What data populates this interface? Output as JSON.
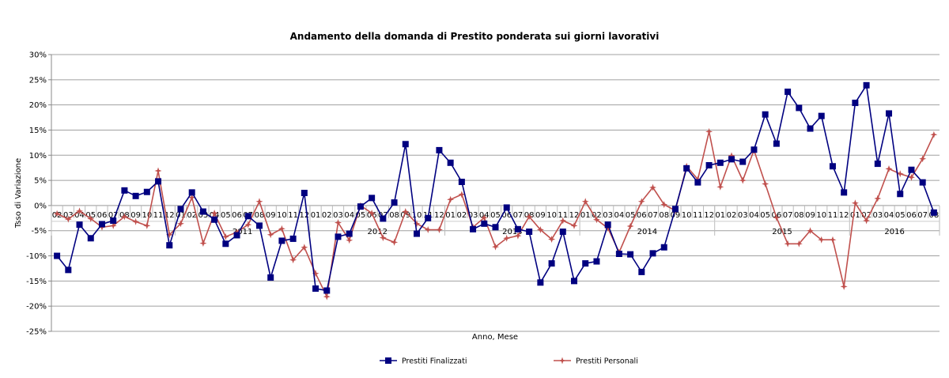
{
  "chart_data": {
    "type": "line",
    "title": "Andamento della domanda di Prestito ponderata sui giorni lavorativi",
    "xlabel": "Anno, Mese",
    "ylabel": "Tsso di Variazione",
    "ylim": [
      -25,
      30
    ],
    "ytick_step": 5,
    "ytick_format": "%",
    "grid": true,
    "legend_position": "bottom",
    "groups": [
      {
        "year": "",
        "months": [
          "02",
          "03",
          "04",
          "05",
          "06",
          "07",
          "08",
          "09",
          "10",
          "11",
          "12"
        ]
      },
      {
        "year": "2011",
        "months": [
          "01",
          "02",
          "03",
          "04",
          "05",
          "06",
          "07",
          "08",
          "09",
          "10",
          "11",
          "12"
        ]
      },
      {
        "year": "2012",
        "months": [
          "01",
          "02",
          "03",
          "04",
          "05",
          "06",
          "07",
          "08",
          "09",
          "10",
          "11",
          "12"
        ]
      },
      {
        "year": "2013",
        "months": [
          "01",
          "02",
          "03",
          "04",
          "05",
          "06",
          "07",
          "08",
          "09",
          "10",
          "11",
          "12"
        ]
      },
      {
        "year": "2014",
        "months": [
          "01",
          "02",
          "03",
          "04",
          "05",
          "06",
          "07",
          "08",
          "09",
          "10",
          "11",
          "12"
        ]
      },
      {
        "year": "2015",
        "months": [
          "01",
          "02",
          "03",
          "04",
          "05",
          "06",
          "07",
          "08",
          "09",
          "10",
          "11",
          "12"
        ]
      },
      {
        "year": "2016",
        "months": [
          "01",
          "02",
          "03",
          "04",
          "05",
          "06",
          "07",
          "08"
        ]
      }
    ],
    "series": [
      {
        "name": "Prestiti Finalizzati",
        "color": "#000080",
        "marker": "square",
        "values": [
          -10,
          -12.8,
          -3.8,
          -6.5,
          -3.7,
          -3.0,
          3.0,
          1.9,
          2.7,
          4.8,
          -7.9,
          -0.7,
          2.6,
          -1.2,
          -2.8,
          -7.6,
          -5.9,
          -2.1,
          -4.0,
          -14.3,
          -7.0,
          -6.6,
          2.5,
          -16.5,
          -16.9,
          -6.2,
          -5.6,
          -0.2,
          1.5,
          -2.6,
          0.6,
          12.2,
          -5.6,
          -2.5,
          11.0,
          8.5,
          4.7,
          -4.7,
          -3.6,
          -4.3,
          -0.4,
          -4.7,
          -5.2,
          -15.3,
          -11.5,
          -5.2,
          -15.0,
          -11.5,
          -11.1,
          -3.8,
          -9.6,
          -9.7,
          -13.2,
          -9.5,
          -8.3,
          -0.7,
          7.4,
          4.6,
          8.0,
          8.5,
          9.2,
          8.7,
          11.1,
          18.1,
          12.3,
          22.6,
          19.4,
          15.3,
          17.8,
          7.8,
          2.6,
          20.4,
          23.9,
          8.3,
          18.3,
          2.3,
          7.1,
          4.6,
          -1.4
        ]
      },
      {
        "name": "Prestiti Personali",
        "color": "#c0504d",
        "marker": "star",
        "values": [
          -1.6,
          -2.7,
          -1.1,
          -2.6,
          -4.3,
          -4.0,
          -2.2,
          -3.2,
          -4.0,
          6.9,
          -5.8,
          -3.6,
          1.6,
          -7.5,
          -1.5,
          -6.2,
          -5.3,
          -3.8,
          0.8,
          -5.8,
          -4.6,
          -10.8,
          -8.3,
          -13.5,
          -18.1,
          -3.4,
          -6.9,
          0.0,
          -1.5,
          -6.4,
          -7.3,
          -1.2,
          -3.6,
          -4.8,
          -4.8,
          1.2,
          2.2,
          -4.3,
          -2.4,
          -8.2,
          -6.5,
          -6.0,
          -2.2,
          -4.8,
          -6.7,
          -3.0,
          -4.0,
          0.8,
          -2.8,
          -4.5,
          -9.3,
          -4.1,
          0.8,
          3.6,
          0.2,
          -1.0,
          7.8,
          5.2,
          14.7,
          3.7,
          9.9,
          5.0,
          11.0,
          4.3,
          -2.4,
          -7.6,
          -7.6,
          -5.0,
          -6.8,
          -6.8,
          -16.1,
          0.5,
          -3.0,
          1.4,
          7.3,
          6.3,
          5.6,
          9.3,
          14.1
        ]
      }
    ]
  }
}
